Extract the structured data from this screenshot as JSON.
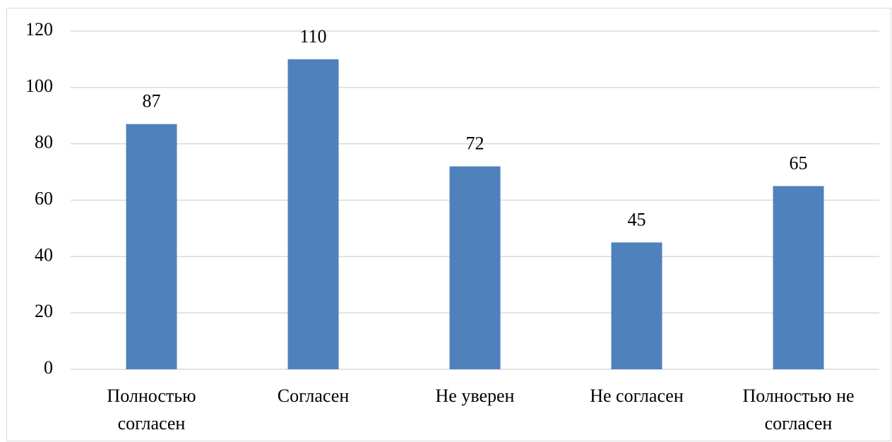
{
  "chart_data": {
    "type": "bar",
    "categories": [
      "Полностью\nсогласен",
      "Согласен",
      "Не уверен",
      "Не согласен",
      "Полностью не\nсогласен"
    ],
    "values": [
      87,
      110,
      72,
      45,
      65
    ],
    "color": "#4f81bd",
    "ylim": [
      0,
      120
    ],
    "yticks": [
      0,
      20,
      40,
      60,
      80,
      100,
      120
    ],
    "grid": true,
    "data_labels": true
  }
}
